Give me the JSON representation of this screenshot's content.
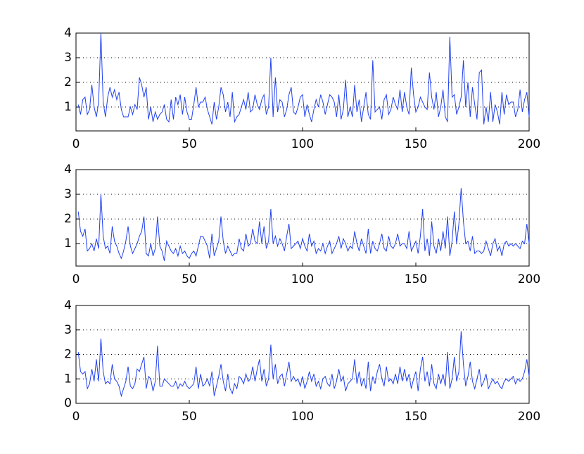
{
  "chart_data": [
    {
      "type": "line",
      "color": "#2040f0",
      "xlim": [
        0,
        200
      ],
      "xticks": [
        0,
        50,
        100,
        150,
        200
      ],
      "ylim": [
        0.03,
        4
      ],
      "yticks": [
        1,
        2,
        3,
        4
      ],
      "grid": true,
      "x": [
        1,
        2,
        3,
        4,
        5,
        6,
        7,
        8,
        9,
        10,
        11,
        12,
        13,
        14,
        15,
        16,
        17,
        18,
        19,
        20,
        21,
        22,
        23,
        24,
        25,
        26,
        27,
        28,
        29,
        30,
        31,
        32,
        33,
        34,
        35,
        36,
        37,
        38,
        39,
        40,
        41,
        42,
        43,
        44,
        45,
        46,
        47,
        48,
        49,
        50,
        51,
        52,
        53,
        54,
        55,
        56,
        57,
        58,
        59,
        60,
        61,
        62,
        63,
        64,
        65,
        66,
        67,
        68,
        69,
        70,
        71,
        72,
        73,
        74,
        75,
        76,
        77,
        78,
        79,
        80,
        81,
        82,
        83,
        84,
        85,
        86,
        87,
        88,
        89,
        90,
        91,
        92,
        93,
        94,
        95,
        96,
        97,
        98,
        99,
        100,
        101,
        102,
        103,
        104,
        105,
        106,
        107,
        108,
        109,
        110,
        111,
        112,
        113,
        114,
        115,
        116,
        117,
        118,
        119,
        120,
        121,
        122,
        123,
        124,
        125,
        126,
        127,
        128,
        129,
        130,
        131,
        132,
        133,
        134,
        135,
        136,
        137,
        138,
        139,
        140,
        141,
        142,
        143,
        144,
        145,
        146,
        147,
        148,
        149,
        150,
        151,
        152,
        153,
        154,
        155,
        156,
        157,
        158,
        159,
        160,
        161,
        162,
        163,
        164,
        165,
        166,
        167,
        168,
        169,
        170,
        171,
        172,
        173,
        174,
        175,
        176,
        177,
        178,
        179,
        180,
        181,
        182,
        183,
        184,
        185,
        186,
        187,
        188,
        189,
        190,
        191,
        192,
        193,
        194,
        195,
        196,
        197,
        198,
        199,
        200
      ],
      "values": [
        1.1,
        0.7,
        1.3,
        1.4,
        0.7,
        0.9,
        1.9,
        1.0,
        0.6,
        1.2,
        4.0,
        1.2,
        0.6,
        1.4,
        1.8,
        1.4,
        1.7,
        1.3,
        1.6,
        0.9,
        0.6,
        0.6,
        0.6,
        1.0,
        0.7,
        1.1,
        0.9,
        2.2,
        1.9,
        1.4,
        1.8,
        0.5,
        1.0,
        0.4,
        0.8,
        0.5,
        0.7,
        0.8,
        1.1,
        0.5,
        0.4,
        1.3,
        0.5,
        1.4,
        1.1,
        1.5,
        0.7,
        1.4,
        0.8,
        0.5,
        0.5,
        1.1,
        1.8,
        1.0,
        1.2,
        1.2,
        1.4,
        0.9,
        0.6,
        0.3,
        1.2,
        0.5,
        1.0,
        1.8,
        1.5,
        0.8,
        1.2,
        0.6,
        1.6,
        0.4,
        0.6,
        0.7,
        1.0,
        1.3,
        0.9,
        1.6,
        0.8,
        0.9,
        1.5,
        1.1,
        0.9,
        1.3,
        1.5,
        0.7,
        1.0,
        3.0,
        0.6,
        2.2,
        0.8,
        1.3,
        1.2,
        0.6,
        0.9,
        1.5,
        1.8,
        0.8,
        0.7,
        1.0,
        1.4,
        1.5,
        0.6,
        1.1,
        0.7,
        0.4,
        0.9,
        1.3,
        1.0,
        1.5,
        1.2,
        0.7,
        1.1,
        1.5,
        1.4,
        1.2,
        0.6,
        1.5,
        0.5,
        0.9,
        2.1,
        0.6,
        1.0,
        0.6,
        1.9,
        0.8,
        1.3,
        0.4,
        1.0,
        1.6,
        0.7,
        0.5,
        2.9,
        0.8,
        0.9,
        1.0,
        0.5,
        1.3,
        1.5,
        0.7,
        0.9,
        1.4,
        1.1,
        0.9,
        1.7,
        0.8,
        1.6,
        1.0,
        0.7,
        2.6,
        1.5,
        0.8,
        1.0,
        1.4,
        1.2,
        1.0,
        0.9,
        2.4,
        1.4,
        0.9,
        1.6,
        0.6,
        1.0,
        1.7,
        0.6,
        0.4,
        3.85,
        1.4,
        1.5,
        0.7,
        1.0,
        1.4,
        2.9,
        1.0,
        2.0,
        0.6,
        1.8,
        1.1,
        0.5,
        2.4,
        2.5,
        0.3,
        1.0,
        0.4,
        1.6,
        0.4,
        1.1,
        0.8,
        0.3,
        1.6,
        0.7,
        1.5,
        1.1,
        1.2,
        1.2,
        0.6,
        0.9,
        1.7,
        0.8,
        1.3,
        1.6,
        0.6
      ]
    },
    {
      "type": "line",
      "color": "#2040f0",
      "xlim": [
        0,
        200
      ],
      "xticks": [
        0,
        50,
        100,
        150,
        200
      ],
      "ylim": [
        0.09,
        4
      ],
      "yticks": [
        1,
        2,
        3,
        4
      ],
      "grid": true,
      "x": [
        1,
        2,
        3,
        4,
        5,
        6,
        7,
        8,
        9,
        10,
        11,
        12,
        13,
        14,
        15,
        16,
        17,
        18,
        19,
        20,
        21,
        22,
        23,
        24,
        25,
        26,
        27,
        28,
        29,
        30,
        31,
        32,
        33,
        34,
        35,
        36,
        37,
        38,
        39,
        40,
        41,
        42,
        43,
        44,
        45,
        46,
        47,
        48,
        49,
        50,
        51,
        52,
        53,
        54,
        55,
        56,
        57,
        58,
        59,
        60,
        61,
        62,
        63,
        64,
        65,
        66,
        67,
        68,
        69,
        70,
        71,
        72,
        73,
        74,
        75,
        76,
        77,
        78,
        79,
        80,
        81,
        82,
        83,
        84,
        85,
        86,
        87,
        88,
        89,
        90,
        91,
        92,
        93,
        94,
        95,
        96,
        97,
        98,
        99,
        100,
        101,
        102,
        103,
        104,
        105,
        106,
        107,
        108,
        109,
        110,
        111,
        112,
        113,
        114,
        115,
        116,
        117,
        118,
        119,
        120,
        121,
        122,
        123,
        124,
        125,
        126,
        127,
        128,
        129,
        130,
        131,
        132,
        133,
        134,
        135,
        136,
        137,
        138,
        139,
        140,
        141,
        142,
        143,
        144,
        145,
        146,
        147,
        148,
        149,
        150,
        151,
        152,
        153,
        154,
        155,
        156,
        157,
        158,
        159,
        160,
        161,
        162,
        163,
        164,
        165,
        166,
        167,
        168,
        169,
        170,
        171,
        172,
        173,
        174,
        175,
        176,
        177,
        178,
        179,
        180,
        181,
        182,
        183,
        184,
        185,
        186,
        187,
        188,
        189,
        190,
        191,
        192,
        193,
        194,
        195,
        196,
        197,
        198,
        199,
        200
      ],
      "values": [
        2.3,
        1.5,
        1.3,
        1.6,
        0.7,
        0.8,
        1.0,
        0.7,
        1.2,
        0.8,
        3.0,
        1.3,
        0.8,
        0.9,
        0.6,
        1.7,
        1.1,
        0.9,
        0.6,
        0.4,
        0.7,
        1.1,
        1.7,
        0.9,
        0.6,
        0.8,
        1.0,
        1.3,
        1.5,
        2.1,
        0.6,
        0.5,
        1.0,
        0.5,
        0.8,
        2.1,
        0.9,
        0.7,
        0.3,
        1.1,
        0.9,
        0.7,
        0.6,
        0.8,
        0.5,
        0.9,
        0.6,
        0.7,
        0.5,
        0.4,
        0.6,
        0.7,
        0.5,
        0.9,
        1.3,
        1.3,
        1.1,
        0.9,
        0.4,
        1.4,
        0.5,
        0.8,
        1.1,
        2.1,
        1.1,
        0.6,
        0.9,
        0.7,
        0.5,
        0.6,
        0.6,
        1.2,
        0.8,
        0.7,
        1.4,
        0.9,
        1.0,
        1.6,
        1.1,
        1.0,
        1.9,
        1.0,
        1.7,
        0.8,
        1.1,
        2.4,
        1.0,
        1.3,
        0.9,
        1.2,
        1.0,
        0.7,
        1.3,
        1.8,
        0.8,
        0.9,
        1.0,
        1.1,
        0.8,
        1.2,
        0.9,
        0.7,
        1.4,
        0.9,
        1.1,
        0.6,
        0.8,
        0.7,
        1.0,
        0.6,
        0.9,
        1.1,
        0.6,
        0.8,
        1.0,
        1.3,
        0.8,
        1.2,
        1.0,
        0.7,
        0.9,
        0.8,
        1.5,
        1.0,
        0.7,
        1.2,
        0.9,
        0.6,
        1.6,
        0.6,
        1.1,
        0.8,
        0.7,
        1.0,
        1.4,
        0.8,
        0.7,
        1.3,
        0.9,
        0.8,
        1.0,
        1.4,
        0.9,
        1.0,
        1.0,
        0.8,
        1.5,
        0.7,
        0.9,
        1.1,
        0.6,
        1.3,
        2.4,
        0.7,
        1.2,
        0.5,
        1.9,
        0.9,
        0.6,
        1.2,
        0.7,
        1.5,
        0.8,
        2.1,
        0.5,
        1.1,
        2.3,
        1.0,
        1.8,
        3.25,
        1.9,
        1.0,
        1.1,
        0.7,
        1.3,
        0.6,
        0.7,
        0.7,
        0.6,
        0.7,
        1.1,
        0.8,
        0.5,
        1.0,
        1.2,
        0.7,
        0.9,
        0.5,
        1.0,
        1.1,
        0.9,
        1.0,
        0.9,
        1.0,
        0.9,
        0.8,
        1.1,
        1.0,
        1.8,
        1.0
      ]
    },
    {
      "type": "line",
      "color": "#2040f0",
      "xlim": [
        0,
        200
      ],
      "xticks": [
        0,
        50,
        100,
        150,
        200
      ],
      "ylim": [
        0,
        4
      ],
      "yticks": [
        0,
        1,
        2,
        3,
        4
      ],
      "grid": true,
      "x": [
        1,
        2,
        3,
        4,
        5,
        6,
        7,
        8,
        9,
        10,
        11,
        12,
        13,
        14,
        15,
        16,
        17,
        18,
        19,
        20,
        21,
        22,
        23,
        24,
        25,
        26,
        27,
        28,
        29,
        30,
        31,
        32,
        33,
        34,
        35,
        36,
        37,
        38,
        39,
        40,
        41,
        42,
        43,
        44,
        45,
        46,
        47,
        48,
        49,
        50,
        51,
        52,
        53,
        54,
        55,
        56,
        57,
        58,
        59,
        60,
        61,
        62,
        63,
        64,
        65,
        66,
        67,
        68,
        69,
        70,
        71,
        72,
        73,
        74,
        75,
        76,
        77,
        78,
        79,
        80,
        81,
        82,
        83,
        84,
        85,
        86,
        87,
        88,
        89,
        90,
        91,
        92,
        93,
        94,
        95,
        96,
        97,
        98,
        99,
        100,
        101,
        102,
        103,
        104,
        105,
        106,
        107,
        108,
        109,
        110,
        111,
        112,
        113,
        114,
        115,
        116,
        117,
        118,
        119,
        120,
        121,
        122,
        123,
        124,
        125,
        126,
        127,
        128,
        129,
        130,
        131,
        132,
        133,
        134,
        135,
        136,
        137,
        138,
        139,
        140,
        141,
        142,
        143,
        144,
        145,
        146,
        147,
        148,
        149,
        150,
        151,
        152,
        153,
        154,
        155,
        156,
        157,
        158,
        159,
        160,
        161,
        162,
        163,
        164,
        165,
        166,
        167,
        168,
        169,
        170,
        171,
        172,
        173,
        174,
        175,
        176,
        177,
        178,
        179,
        180,
        181,
        182,
        183,
        184,
        185,
        186,
        187,
        188,
        189,
        190,
        191,
        192,
        193,
        194,
        195,
        196,
        197,
        198,
        199,
        200
      ],
      "values": [
        2.1,
        1.3,
        1.2,
        1.3,
        0.6,
        0.8,
        1.4,
        0.9,
        1.8,
        0.9,
        2.65,
        1.3,
        0.8,
        0.9,
        0.8,
        1.6,
        1.0,
        0.9,
        0.7,
        0.3,
        0.6,
        0.9,
        1.5,
        0.7,
        0.6,
        0.8,
        1.4,
        1.3,
        1.6,
        1.9,
        0.6,
        1.1,
        1.0,
        0.5,
        0.9,
        2.35,
        0.7,
        0.7,
        1.0,
        0.9,
        0.8,
        0.7,
        0.7,
        0.9,
        0.6,
        0.8,
        0.7,
        0.9,
        0.7,
        0.6,
        0.7,
        0.8,
        1.5,
        0.6,
        1.2,
        0.7,
        0.8,
        1.0,
        0.7,
        1.3,
        0.3,
        0.7,
        1.1,
        1.6,
        0.9,
        0.5,
        1.2,
        0.6,
        0.4,
        0.8,
        0.6,
        1.1,
        1.0,
        0.8,
        1.2,
        0.9,
        1.0,
        1.5,
        0.9,
        1.4,
        1.8,
        0.9,
        1.4,
        0.7,
        1.0,
        2.4,
        1.0,
        1.6,
        0.8,
        1.1,
        1.2,
        0.7,
        1.2,
        1.7,
        0.9,
        1.1,
        0.9,
        1.0,
        0.7,
        1.1,
        0.6,
        0.9,
        1.3,
        0.9,
        1.2,
        0.7,
        0.9,
        0.6,
        1.0,
        1.1,
        0.8,
        0.7,
        1.2,
        0.6,
        0.9,
        1.4,
        0.9,
        1.1,
        0.5,
        0.8,
        0.9,
        1.0,
        1.8,
        0.8,
        1.3,
        0.7,
        1.0,
        0.6,
        1.7,
        0.5,
        1.1,
        0.8,
        1.3,
        1.6,
        1.0,
        0.7,
        1.5,
        0.9,
        1.0,
        0.8,
        1.2,
        0.8,
        1.5,
        0.9,
        1.4,
        0.9,
        1.2,
        0.6,
        1.0,
        1.3,
        0.5,
        1.4,
        1.9,
        0.9,
        1.3,
        0.7,
        1.6,
        0.8,
        0.6,
        1.2,
        0.8,
        1.2,
        0.7,
        2.1,
        0.6,
        1.0,
        1.9,
        0.9,
        1.3,
        2.95,
        1.6,
        0.7,
        1.1,
        1.7,
        0.9,
        0.6,
        1.0,
        1.4,
        0.7,
        0.9,
        1.2,
        0.6,
        0.8,
        1.0,
        0.8,
        0.9,
        0.7,
        0.6,
        0.9,
        1.0,
        0.9,
        1.0,
        1.1,
        0.8,
        1.0,
        0.9,
        1.0,
        1.3,
        1.8,
        1.1
      ]
    }
  ]
}
